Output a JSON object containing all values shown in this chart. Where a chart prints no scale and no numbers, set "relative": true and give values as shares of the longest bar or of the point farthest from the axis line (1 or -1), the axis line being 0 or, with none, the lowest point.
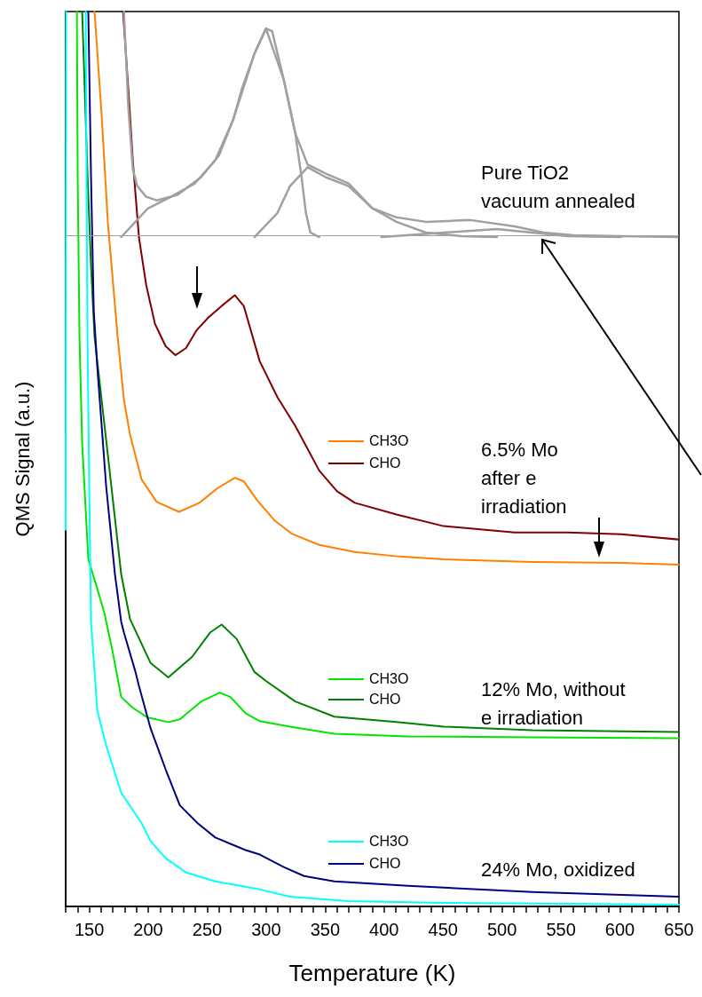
{
  "chart_data": {
    "type": "line",
    "relative": true,
    "xlabel": "Temperature (K)",
    "ylabel": "QMS Signal (a.u.)",
    "xlim": [
      130,
      650
    ],
    "xticks": [
      {
        "value": 130,
        "label": null
      },
      {
        "value": 140,
        "label": null
      },
      150,
      {
        "value": 160,
        "label": null
      },
      {
        "value": 170,
        "label": null
      },
      {
        "value": 180,
        "label": null
      },
      {
        "value": 190,
        "label": null
      },
      200,
      {
        "value": 210,
        "label": null
      },
      {
        "value": 220,
        "label": null
      },
      {
        "value": 230,
        "label": null
      },
      {
        "value": 240,
        "label": null
      },
      250,
      {
        "value": 260,
        "label": null
      },
      {
        "value": 270,
        "label": null
      },
      {
        "value": 280,
        "label": null
      },
      {
        "value": 290,
        "label": null
      },
      300,
      {
        "value": 310,
        "label": null
      },
      {
        "value": 320,
        "label": null
      },
      {
        "value": 330,
        "label": null
      },
      {
        "value": 340,
        "label": null
      },
      350,
      {
        "value": 360,
        "label": null
      },
      {
        "value": 370,
        "label": null
      },
      {
        "value": 380,
        "label": null
      },
      {
        "value": 390,
        "label": null
      },
      400,
      {
        "value": 410,
        "label": null
      },
      {
        "value": 420,
        "label": null
      },
      {
        "value": 430,
        "label": null
      },
      {
        "value": 440,
        "label": null
      },
      450,
      {
        "value": 460,
        "label": null
      },
      {
        "value": 470,
        "label": null
      },
      {
        "value": 480,
        "label": null
      },
      {
        "value": 490,
        "label": null
      },
      500,
      {
        "value": 510,
        "label": null
      },
      {
        "value": 520,
        "label": null
      },
      {
        "value": 530,
        "label": null
      },
      {
        "value": 540,
        "label": null
      },
      550,
      {
        "value": 560,
        "label": null
      },
      {
        "value": 570,
        "label": null
      },
      {
        "value": 580,
        "label": null
      },
      {
        "value": 590,
        "label": null
      },
      600,
      {
        "value": 610,
        "label": null
      },
      {
        "value": 620,
        "label": null
      },
      {
        "value": 630,
        "label": null
      },
      {
        "value": 640,
        "label": null
      },
      650
    ],
    "tick_labels": "x",
    "grid": false,
    "legend": "right",
    "marker": "none",
    "line_style": "solid",
    "annotations": [
      "Pure TiO2\nvacuum annealed",
      "6.5% Mo\nafter e\nirradiation",
      "12% Mo, without\ne irradiation",
      "24% Mo, oxidized"
    ],
    "ref_lines": [
      {
        "axis": "y",
        "value": 0.748,
        "label": null,
        "color": "#a0a0a0"
      }
    ],
    "series": [
      {
        "name": "CH3O",
        "color": "#ff8000",
        "x": [
          154.5,
          160.5,
          165.8,
          174.1,
          179.4,
          184.6,
          194.4,
          207.2,
          226.1,
          243.4,
          258.4,
          273.5,
          281.0,
          292.3,
          307.4,
          322.4,
          345.0,
          375.2,
          412.8,
          450.5,
          525.7,
          601.0,
          650
        ],
        "values": [
          1.0,
          0.884,
          0.764,
          0.636,
          0.566,
          0.527,
          0.477,
          0.452,
          0.441,
          0.451,
          0.467,
          0.479,
          0.475,
          0.454,
          0.431,
          0.416,
          0.404,
          0.396,
          0.391,
          0.388,
          0.385,
          0.384,
          0.382
        ]
      },
      {
        "name": "CHO",
        "color": "#800000",
        "x": [
          178.6,
          183.1,
          186.9,
          192.2,
          198.2,
          205.7,
          214.8,
          223.0,
          232.1,
          241.1,
          250.9,
          262.2,
          273.5,
          281.0,
          294.6,
          309.6,
          324.7,
          345.0,
          360.1,
          375.2,
          410.5,
          450.5,
          510.7,
          555.9,
          601.0,
          650
        ],
        "values": [
          1.0,
          0.914,
          0.834,
          0.747,
          0.695,
          0.651,
          0.626,
          0.616,
          0.624,
          0.644,
          0.658,
          0.671,
          0.683,
          0.671,
          0.609,
          0.569,
          0.537,
          0.487,
          0.464,
          0.451,
          0.438,
          0.425,
          0.418,
          0.418,
          0.416,
          0.41
        ]
      },
      {
        "name": "CH3O",
        "color": "#00e600",
        "x": [
          139.5,
          140.2,
          141.7,
          144.0,
          149.2,
          156.8,
          162.8,
          169.6,
          177.1,
          186.9,
          199.7,
          217.0,
          226.8,
          244.9,
          260.7,
          269.7,
          282.5,
          294.6,
          320.2,
          357.8,
          420.3,
          525.7,
          650
        ],
        "values": [
          1.0,
          0.815,
          0.636,
          0.517,
          0.388,
          0.355,
          0.328,
          0.286,
          0.234,
          0.222,
          0.211,
          0.206,
          0.209,
          0.229,
          0.239,
          0.234,
          0.216,
          0.207,
          0.201,
          0.193,
          0.19,
          0.189,
          0.188
        ]
      },
      {
        "name": "CHO",
        "color": "#008000",
        "x": [
          144.0,
          148.6,
          151.5,
          154.5,
          165.8,
          177.1,
          184.6,
          202.0,
          217.0,
          237.3,
          252.4,
          262.2,
          275.0,
          290.1,
          299.8,
          324.7,
          357.8,
          410.5,
          450.5,
          525.7,
          650
        ],
        "values": [
          1.0,
          0.815,
          0.715,
          0.636,
          0.504,
          0.371,
          0.321,
          0.272,
          0.256,
          0.279,
          0.306,
          0.315,
          0.299,
          0.262,
          0.252,
          0.229,
          0.212,
          0.206,
          0.201,
          0.197,
          0.195
        ]
      },
      {
        "name": "CH3O",
        "color": "#00ffff",
        "x": [
          130,
          130.4,
          140,
          147.0,
          147.7,
          148.5,
          150.0,
          151.5,
          156.8,
          164.3,
          177.1,
          194.4,
          202.0,
          214.8,
          232.1,
          256.9,
          294.6,
          320.2,
          369.9,
          450.5,
          650
        ],
        "values": [
          0.421,
          1.0,
          null,
          1.0,
          0.815,
          0.636,
          0.466,
          0.318,
          0.219,
          0.18,
          0.127,
          0.093,
          0.073,
          0.054,
          0.038,
          0.028,
          0.019,
          0.011,
          0.006,
          0.004,
          0.002
        ]
      },
      {
        "name": "CHO",
        "color": "#000080",
        "x": [
          149.2,
          151.5,
          153.8,
          156.8,
          164.3,
          171.8,
          177.1,
          179.4,
          189.2,
          192.2,
          202.0,
          214.8,
          226.8,
          241.9,
          256.9,
          282.5,
          294.6,
          314.9,
          332.2,
          357.8,
          420.3,
          450.5,
          525.7,
          650
        ],
        "values": [
          1.0,
          0.815,
          0.666,
          0.603,
          0.47,
          0.371,
          0.318,
          0.306,
          0.262,
          0.246,
          0.199,
          0.153,
          0.113,
          0.093,
          0.077,
          0.063,
          0.058,
          0.044,
          0.034,
          0.028,
          0.023,
          0.021,
          0.016,
          0.011
        ]
      },
      {
        "color": "#a0a0a0",
        "x": [
          179.4,
          183.1,
          186.9,
          190.7,
          198.2,
          207.2,
          224.5,
          244.9,
          259.9,
          272.0,
          279.5,
          290.1,
          299.8,
          305.1,
          314.9,
          324.7,
          335.2,
          350.3,
          369.9,
          390.2,
          410.5,
          435.4,
          473.0,
          510.7,
          535.5,
          561.1,
          601.0,
          648.5
        ],
        "values": [
          1.0,
          0.894,
          0.824,
          0.805,
          0.793,
          0.789,
          0.795,
          0.815,
          0.839,
          0.879,
          0.914,
          0.953,
          0.981,
          0.978,
          0.924,
          0.864,
          0.829,
          0.819,
          0.808,
          0.78,
          0.77,
          0.765,
          0.767,
          0.76,
          0.753,
          0.75,
          0.749,
          0.748
        ]
      },
      {
        "color": "#a0a0a0",
        "x": [
          177.1,
          199.7,
          219.3,
          239.6,
          256.9,
          272.0,
          290.1,
          299.8,
          314.9,
          324.7,
          330.0,
          333.7,
          337.5,
          345.0
        ],
        "values": [
          0.748,
          0.78,
          0.793,
          0.808,
          0.834,
          0.879,
          0.953,
          0.981,
          0.924,
          0.864,
          0.815,
          0.775,
          0.753,
          0.748
        ]
      },
      {
        "color": "#a0a0a0",
        "x": [
          290.1,
          309.6,
          320.2,
          335.2,
          350.3,
          369.9,
          390.2,
          410.5,
          435.4,
          465.5,
          495.6
        ],
        "values": [
          0.748,
          0.775,
          0.805,
          0.826,
          0.815,
          0.805,
          0.78,
          0.765,
          0.753,
          0.749,
          0.748
        ]
      },
      {
        "color": "#a0a0a0",
        "x": [
          397.7,
          450.5,
          495.6,
          525.7,
          555.9,
          601.0
        ],
        "values": [
          0.748,
          0.753,
          0.757,
          0.753,
          0.749,
          0.748
        ]
      }
    ]
  }
}
